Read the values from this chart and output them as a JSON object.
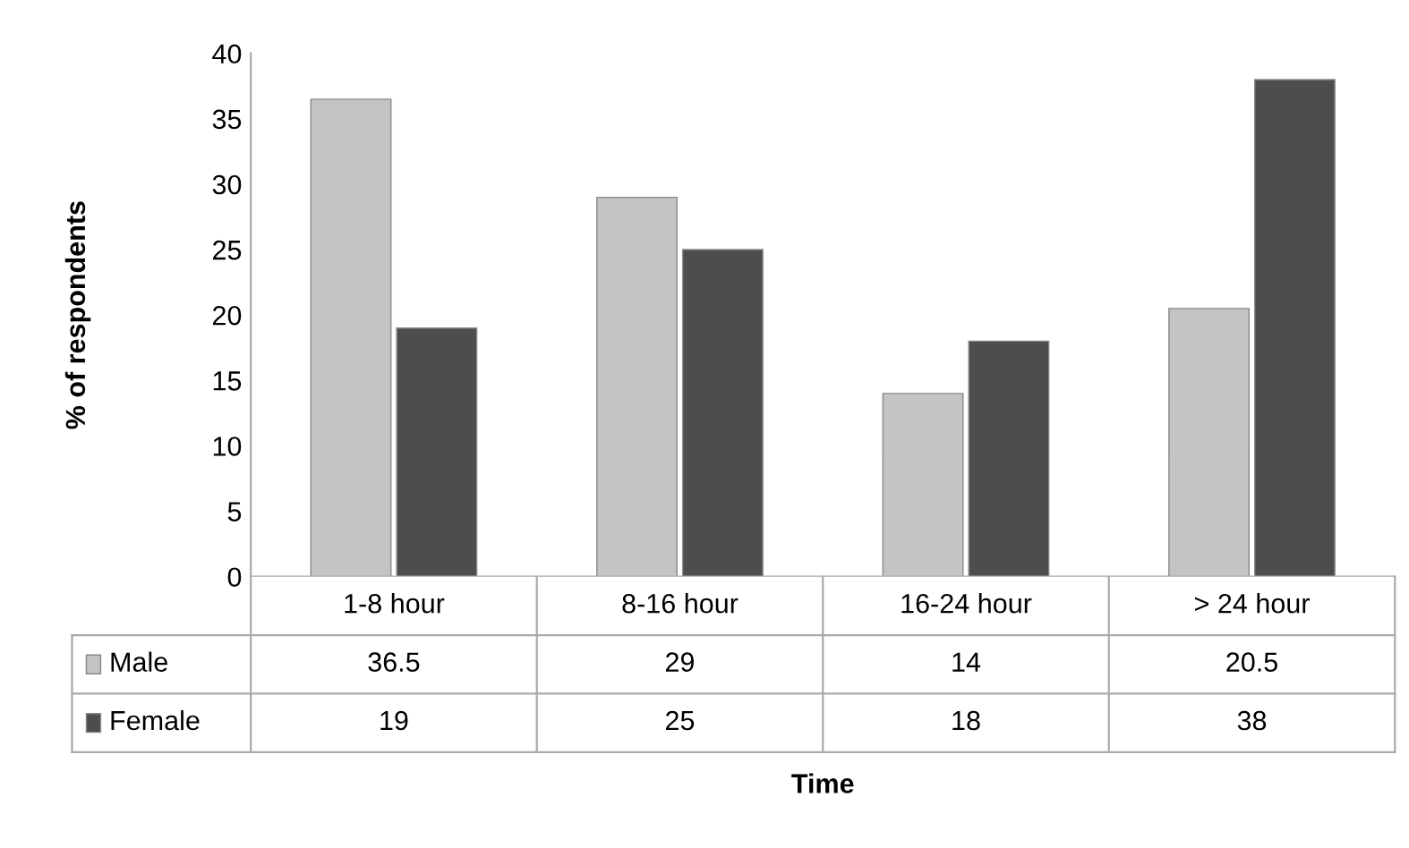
{
  "chart_data": {
    "type": "bar",
    "annotations": [
      "Time"
    ],
    "ylabel": "% of respondents",
    "categories": [
      "1-8 hour",
      "8-16 hour",
      "16-24 hour",
      "> 24 hour"
    ],
    "series": [
      {
        "name": "Male",
        "color": "#c4c4c4",
        "values": [
          36.5,
          29,
          14,
          20.5
        ]
      },
      {
        "name": "Female",
        "color": "#4d4d4d",
        "values": [
          19,
          25,
          18,
          38
        ]
      }
    ],
    "ylim": [
      0,
      40
    ],
    "yticks": [
      0,
      5,
      10,
      15,
      20,
      25,
      30,
      35,
      40
    ],
    "grid": false,
    "legend": "bottom",
    "data_labels": true
  }
}
